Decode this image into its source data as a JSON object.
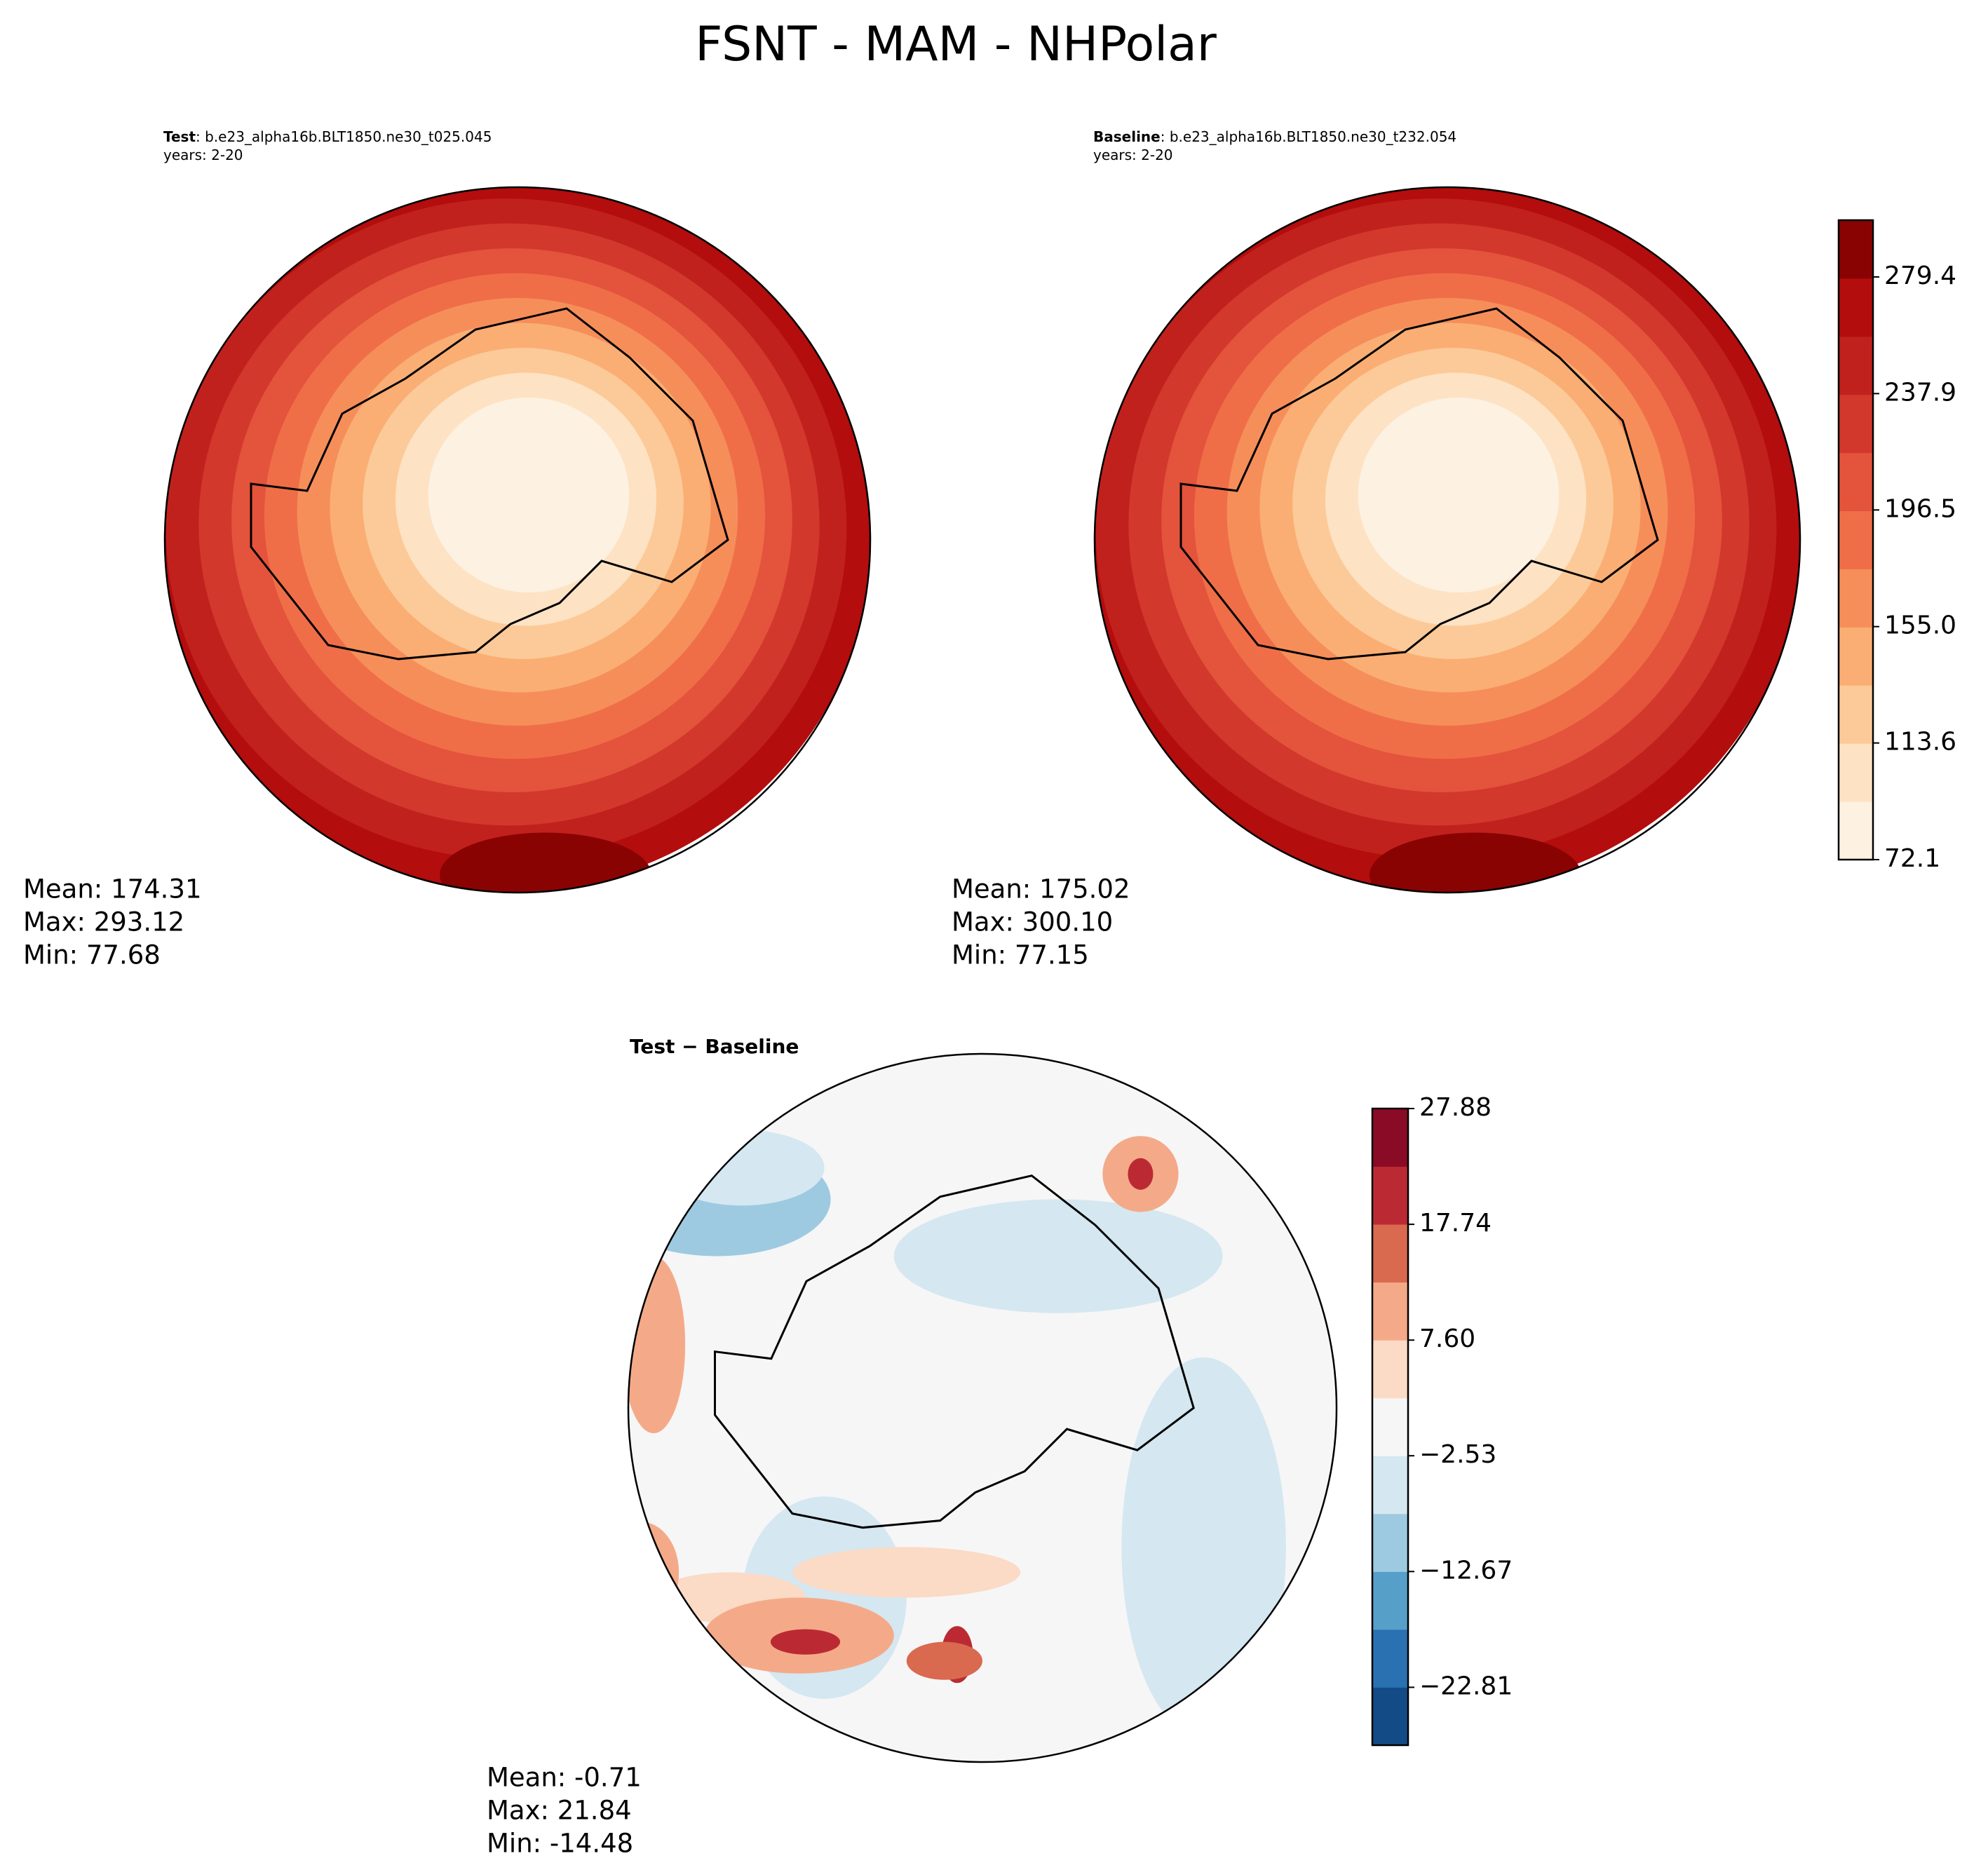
{
  "title": "FSNT - MAM - NHPolar",
  "panels": [
    {
      "label_bold": "Test",
      "label_rest": ": b.e23_alpha16b.BLT1850.ne30_t025.045",
      "years": "years: 2-20",
      "stats": [
        "Mean: 174.31",
        "Max: 293.12",
        "Min: 77.68"
      ]
    },
    {
      "label_bold": "Baseline",
      "label_rest": ": b.e23_alpha16b.BLT1850.ne30_t232.054",
      "years": "years: 2-20",
      "stats": [
        "Mean: 175.02",
        "Max: 300.10",
        "Min: 77.15"
      ]
    },
    {
      "label_bold": "Test − Baseline",
      "stats": [
        "Mean: -0.71",
        "Max: 21.84",
        "Min: -14.48"
      ]
    }
  ],
  "colorbars": [
    {
      "lim": [
        72.1,
        299.6
      ],
      "ticks": [
        72.1,
        113.6,
        {
          "value": 155.0,
          "label": "155.0"
        },
        196.5,
        237.9,
        279.4
      ],
      "colors": [
        "#fdf1e1",
        "#fde2c4",
        "#fcca98",
        "#faae74",
        "#f68e5a",
        "#ef6e48",
        "#e4533b",
        "#d2382c",
        "#c1211d",
        "#b30d0d",
        "#8a0303"
      ]
    },
    {
      "lim": [
        -27.88,
        27.88
      ],
      "ticks": [
        {
          "value": -22.81,
          "label": "−22.81"
        },
        {
          "value": -12.67,
          "label": "−12.67"
        },
        {
          "value": -2.53,
          "label": "−2.53"
        },
        {
          "value": 7.6,
          "label": "7.60"
        },
        17.74,
        27.88
      ],
      "colors": [
        "#134b87",
        "#2a71b1",
        "#569fc9",
        "#9dcae1",
        "#d5e7f1",
        "#f6f6f6",
        "#fbdac6",
        "#f4aa88",
        "#d9694f",
        "#bb2a33",
        "#8a0b25"
      ]
    }
  ]
}
